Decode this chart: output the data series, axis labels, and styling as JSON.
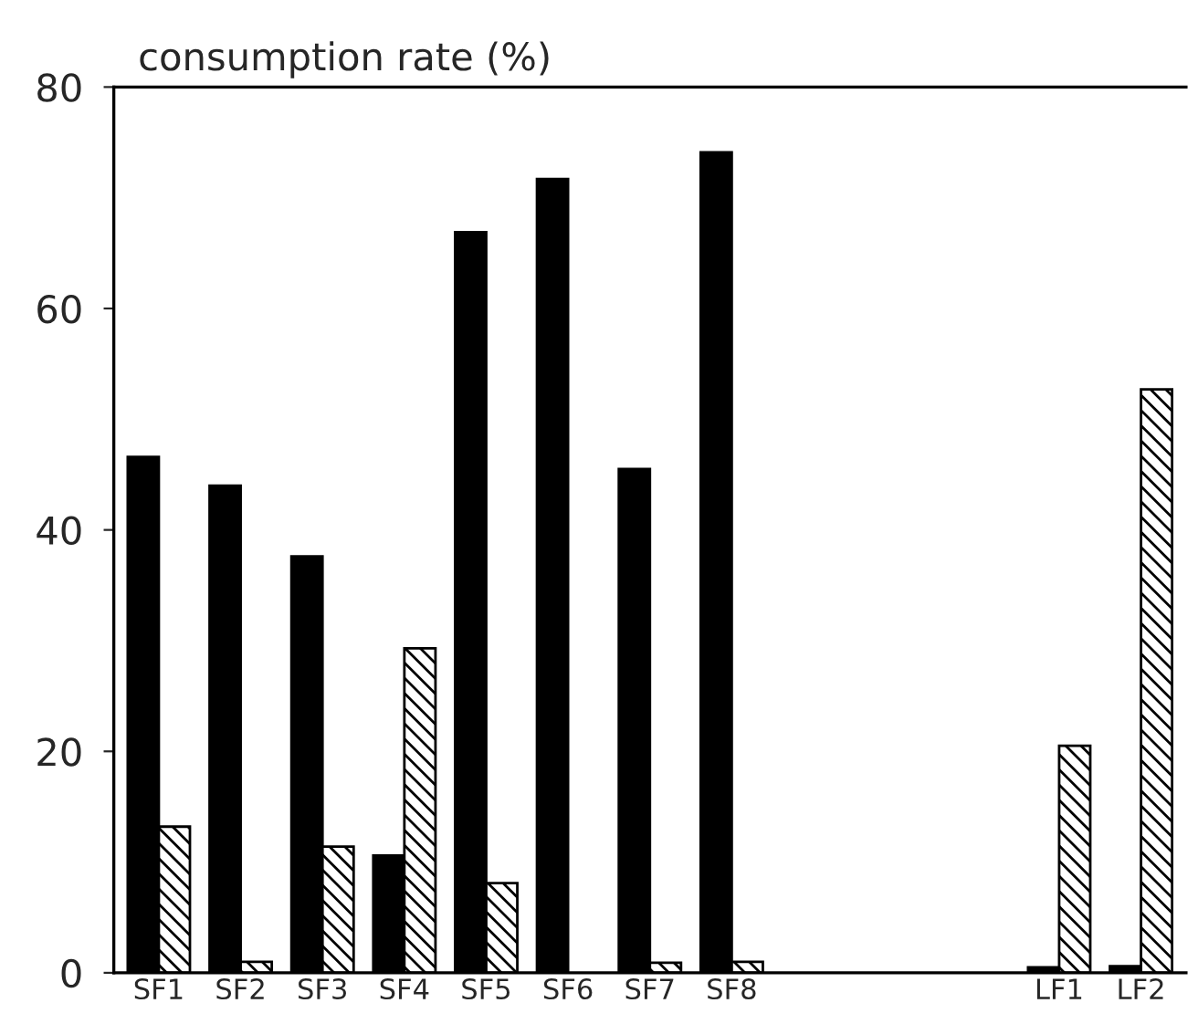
{
  "chart_data": {
    "type": "bar",
    "ylabel": "consumption rate (%)",
    "categories": [
      "SF1",
      "SF2",
      "SF3",
      "SF4",
      "SF5",
      "SF6",
      "SF7",
      "SF8",
      null,
      null,
      null,
      "LF1",
      "LF2"
    ],
    "series": [
      {
        "color": "#000000",
        "values": [
          46.6,
          44.0,
          37.6,
          10.6,
          66.9,
          71.7,
          45.5,
          74.1,
          null,
          null,
          null,
          0.5,
          0.6
        ]
      },
      {
        "color": "#000000",
        "values": [
          13.2,
          1.0,
          11.4,
          29.3,
          8.1,
          null,
          0.9,
          1.0,
          null,
          null,
          null,
          20.5,
          52.7
        ]
      }
    ],
    "ylim": [
      0,
      80
    ],
    "yticks": [
      0,
      20,
      40,
      60,
      80
    ],
    "grid": false,
    "legend": false
  }
}
